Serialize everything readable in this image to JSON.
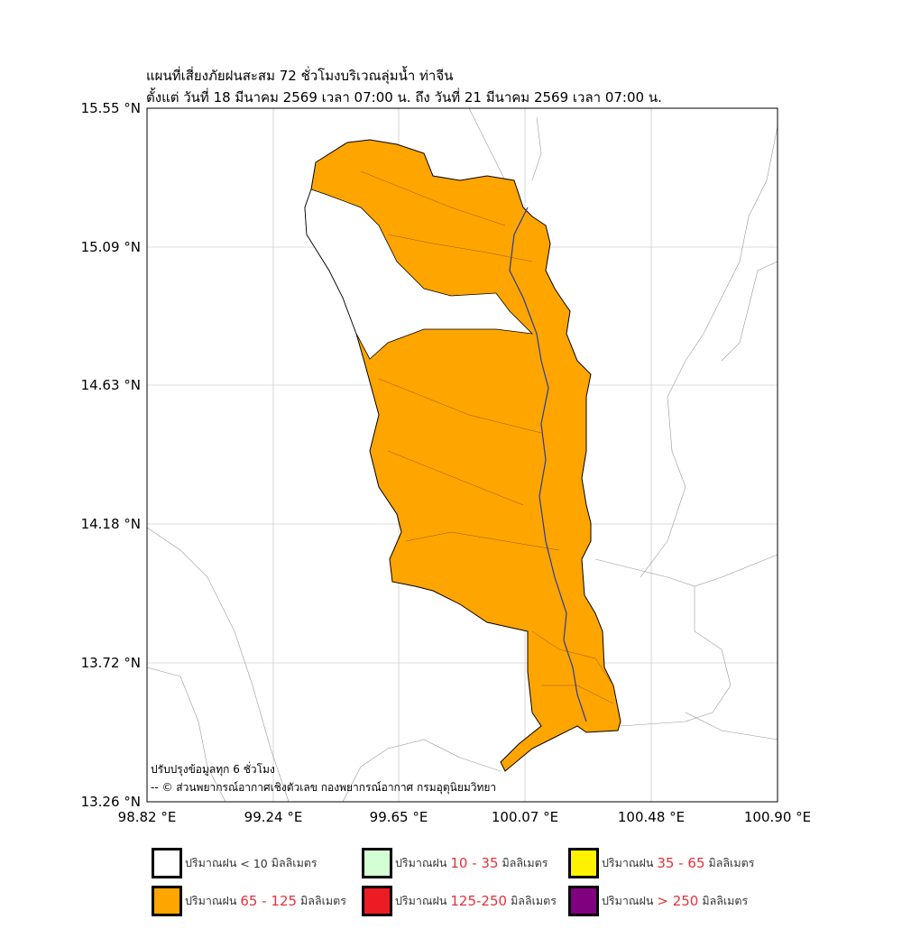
{
  "title": {
    "line1": "แผนที่เสี่ยงภัยฝนสะสม 72 ชั่วโมงบริเวณลุ่มน้ำ ท่าจีน",
    "line2": "ตั้งแต่ วันที่ 18 มีนาคม 2569 เวลา 07:00 น. ถึง วันที่ 21 มีนาคม 2569 เวลา 07:00 น."
  },
  "axes": {
    "y_ticks": [
      "15.55 °N",
      "15.09 °N",
      "14.63 °N",
      "14.18 °N",
      "13.72 °N",
      "13.26 °N"
    ],
    "x_ticks": [
      "98.82 °E",
      "99.24 °E",
      "99.65 °E",
      "100.07 °E",
      "100.48 °E",
      "100.90 °E"
    ]
  },
  "notes": {
    "update": "ปรับปรุงข้อมูลทุก 6 ชั่วโมง",
    "credit": "-- © ส่วนพยากรณ์อากาศเชิงตัวเลข กองพยากรณ์อากาศ กรมอุตุนิยมวิทยา"
  },
  "legend": [
    {
      "prefix": "ปริมาณฝน",
      "range": "< 10",
      "unit": "มิลลิเมตร",
      "color": "#ffffff"
    },
    {
      "prefix": "ปริมาณฝน",
      "range": "10 - 35",
      "unit": "มิลลิเมตร",
      "color": "#d4ffd4"
    },
    {
      "prefix": "ปริมาณฝน",
      "range": "35 - 65",
      "unit": "มิลลิเมตร",
      "color": "#fff200"
    },
    {
      "prefix": "ปริมาณฝน",
      "range": "65 - 125",
      "unit": "มิลลิเมตร",
      "color": "#ffa500"
    },
    {
      "prefix": "ปริมาณฝน",
      "range": "125-250",
      "unit": "มิลลิเมตร",
      "color": "#ed1c24"
    },
    {
      "prefix": "ปริมาณฝน",
      "range": "> 250",
      "unit": "มิลลิเมตร",
      "color": "#800080"
    }
  ]
}
